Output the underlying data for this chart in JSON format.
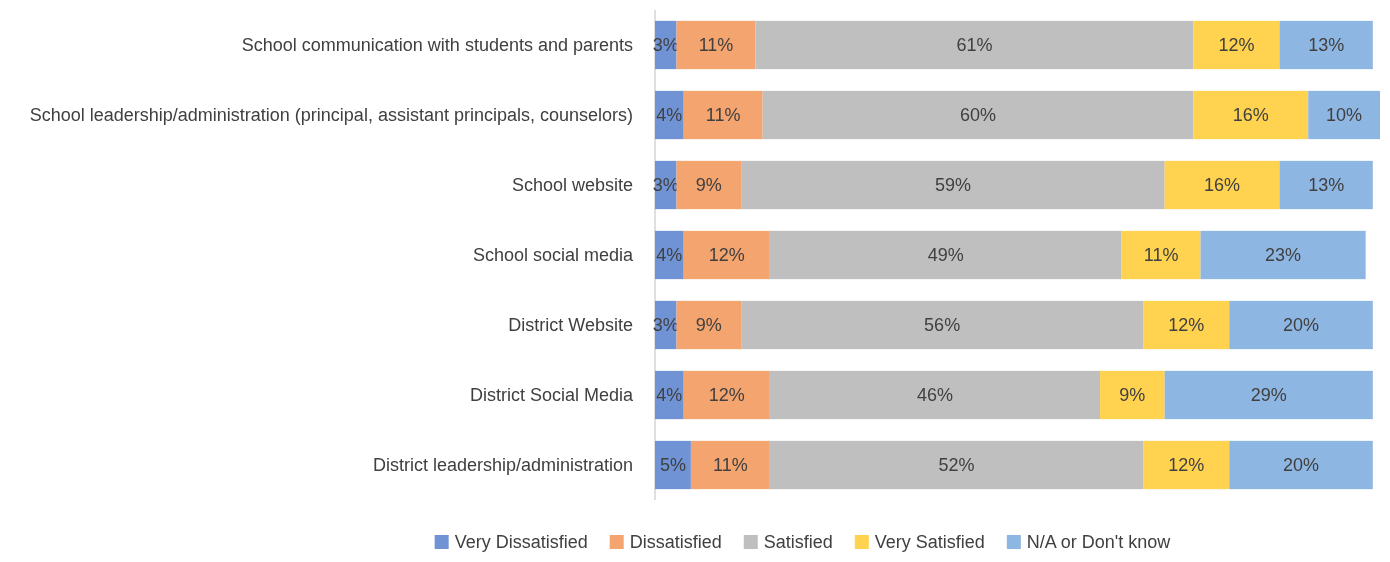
{
  "chart_data": {
    "type": "bar",
    "orientation": "horizontal",
    "stacked": true,
    "legend": "bottom",
    "categories": [
      "School communication with students and parents",
      "School leadership/administration (principal, assistant principals, counselors)",
      "School website",
      "School social media",
      "District Website",
      "District Social Media",
      "District leadership/administration"
    ],
    "series": [
      {
        "name": "Very Dissatisfied",
        "color": "#7093d6",
        "values": [
          3,
          4,
          3,
          4,
          3,
          4,
          5
        ],
        "value_labels": [
          "3%",
          "4%",
          "3%",
          "4%",
          "3%",
          "4%",
          "5%"
        ]
      },
      {
        "name": "Dissatisfied",
        "color": "#f4a46e",
        "values": [
          11,
          11,
          9,
          12,
          9,
          12,
          11
        ],
        "value_labels": [
          "11%",
          "11%",
          "9%",
          "12%",
          "9%",
          "12%",
          "11%"
        ]
      },
      {
        "name": "Satisfied",
        "color": "#bfbfbf",
        "values": [
          61,
          60,
          59,
          49,
          56,
          46,
          52
        ],
        "value_labels": [
          "61%",
          "60%",
          "59%",
          "49%",
          "56%",
          "46%",
          "52%"
        ]
      },
      {
        "name": "Very Satisfied",
        "color": "#ffd24f",
        "values": [
          12,
          16,
          16,
          11,
          12,
          9,
          12
        ],
        "value_labels": [
          "12%",
          "16%",
          "16%",
          "11%",
          "12%",
          "9%",
          "12%"
        ]
      },
      {
        "name": "N/A or Don't know",
        "color": "#8eb6e2",
        "values": [
          13,
          10,
          13,
          23,
          20,
          29,
          20
        ],
        "value_labels": [
          "13%",
          "10%",
          "13%",
          "23%",
          "20%",
          "29%",
          "20%"
        ]
      }
    ]
  }
}
